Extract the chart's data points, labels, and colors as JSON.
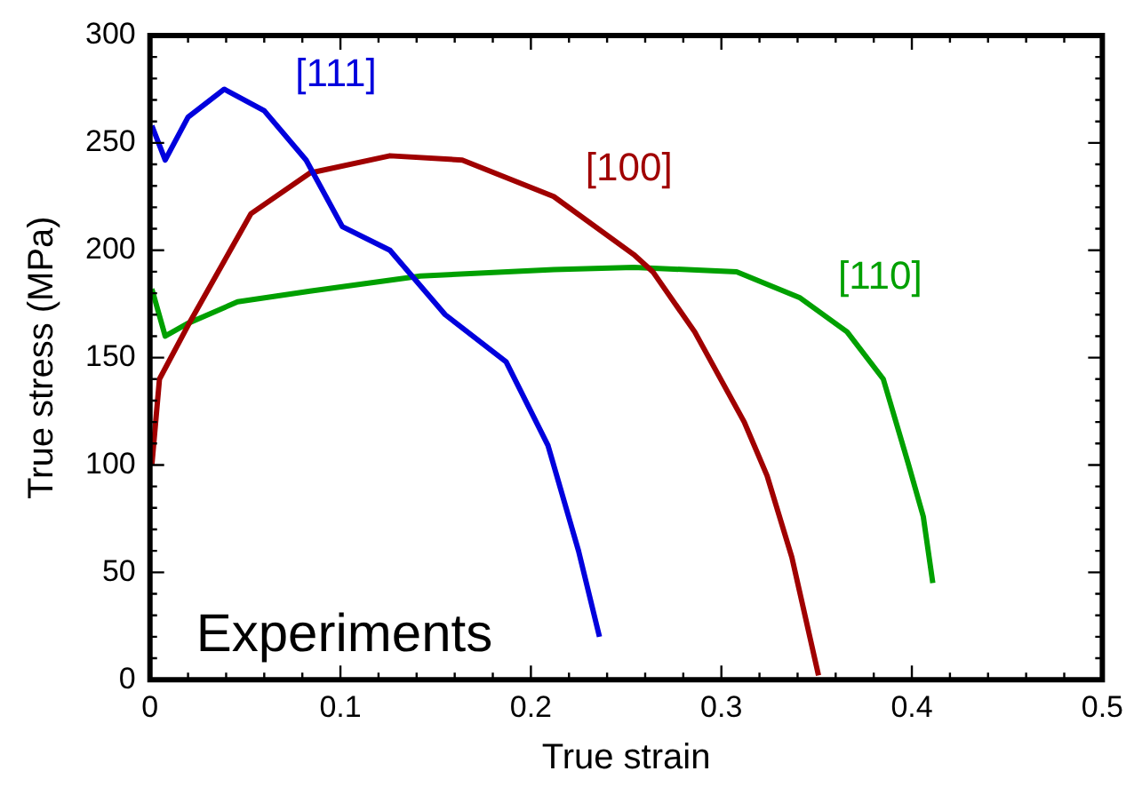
{
  "chart_data": {
    "type": "line",
    "xlabel": "True strain",
    "ylabel": "True stress (MPa)",
    "xlim": [
      0,
      0.5
    ],
    "ylim": [
      0,
      300
    ],
    "xticks": [
      0,
      {
        "value": 0.02,
        "label": null
      },
      {
        "value": 0.04,
        "label": null
      },
      {
        "value": 0.06,
        "label": null
      },
      {
        "value": 0.08,
        "label": null
      },
      0.1,
      {
        "value": 0.12,
        "label": null
      },
      {
        "value": 0.14,
        "label": null
      },
      {
        "value": 0.16,
        "label": null
      },
      {
        "value": 0.18,
        "label": null
      },
      0.2,
      {
        "value": 0.22,
        "label": null
      },
      {
        "value": 0.24,
        "label": null
      },
      {
        "value": 0.26,
        "label": null
      },
      {
        "value": 0.28,
        "label": null
      },
      0.3,
      {
        "value": 0.32,
        "label": null
      },
      {
        "value": 0.34,
        "label": null
      },
      {
        "value": 0.36,
        "label": null
      },
      {
        "value": 0.38,
        "label": null
      },
      0.4,
      {
        "value": 0.42,
        "label": null
      },
      {
        "value": 0.44,
        "label": null
      },
      {
        "value": 0.46,
        "label": null
      },
      {
        "value": 0.48,
        "label": null
      },
      0.5
    ],
    "yticks": [
      0,
      {
        "value": 10,
        "label": null
      },
      {
        "value": 20,
        "label": null
      },
      {
        "value": 30,
        "label": null
      },
      {
        "value": 40,
        "label": null
      },
      50,
      {
        "value": 60,
        "label": null
      },
      {
        "value": 70,
        "label": null
      },
      {
        "value": 80,
        "label": null
      },
      {
        "value": 90,
        "label": null
      },
      100,
      {
        "value": 110,
        "label": null
      },
      {
        "value": 120,
        "label": null
      },
      {
        "value": 130,
        "label": null
      },
      {
        "value": 140,
        "label": null
      },
      150,
      {
        "value": 160,
        "label": null
      },
      {
        "value": 170,
        "label": null
      },
      {
        "value": 180,
        "label": null
      },
      {
        "value": 190,
        "label": null
      },
      200,
      {
        "value": 210,
        "label": null
      },
      {
        "value": 220,
        "label": null
      },
      {
        "value": 230,
        "label": null
      },
      {
        "value": 240,
        "label": null
      },
      250,
      {
        "value": 260,
        "label": null
      },
      {
        "value": 270,
        "label": null
      },
      {
        "value": 280,
        "label": null
      },
      {
        "value": 290,
        "label": null
      },
      300
    ],
    "grid": false,
    "legend": false,
    "marker": "none",
    "line_style": "solid",
    "series": [
      {
        "name": "[111]",
        "color": "#0000dd",
        "x": [
          0.001,
          0.008,
          0.02,
          0.039,
          0.06,
          0.082,
          0.101,
          0.126,
          0.155,
          0.187,
          0.209,
          0.225,
          0.236
        ],
        "values": [
          258,
          242,
          262,
          275,
          265,
          242,
          211,
          200,
          170,
          148,
          109,
          60,
          20
        ]
      },
      {
        "name": "[100]",
        "color": "#a00000",
        "x": [
          0.001,
          0.005,
          0.02,
          0.053,
          0.084,
          0.126,
          0.164,
          0.212,
          0.254,
          0.264,
          0.286,
          0.312,
          0.324,
          0.337,
          0.351
        ],
        "values": [
          100,
          140,
          165,
          217,
          236,
          244,
          242,
          225,
          198,
          190,
          162,
          120,
          95,
          57,
          2
        ]
      },
      {
        "name": "[110]",
        "color": "#00a000",
        "x": [
          0.001,
          0.008,
          0.02,
          0.046,
          0.084,
          0.142,
          0.212,
          0.254,
          0.308,
          0.341,
          0.366,
          0.385,
          0.398,
          0.406,
          0.411
        ],
        "values": [
          182,
          160,
          166,
          176,
          181,
          188,
          191,
          192,
          190,
          178,
          162,
          140,
          101,
          76,
          45
        ]
      }
    ],
    "annotations": [
      "Experiments"
    ]
  }
}
